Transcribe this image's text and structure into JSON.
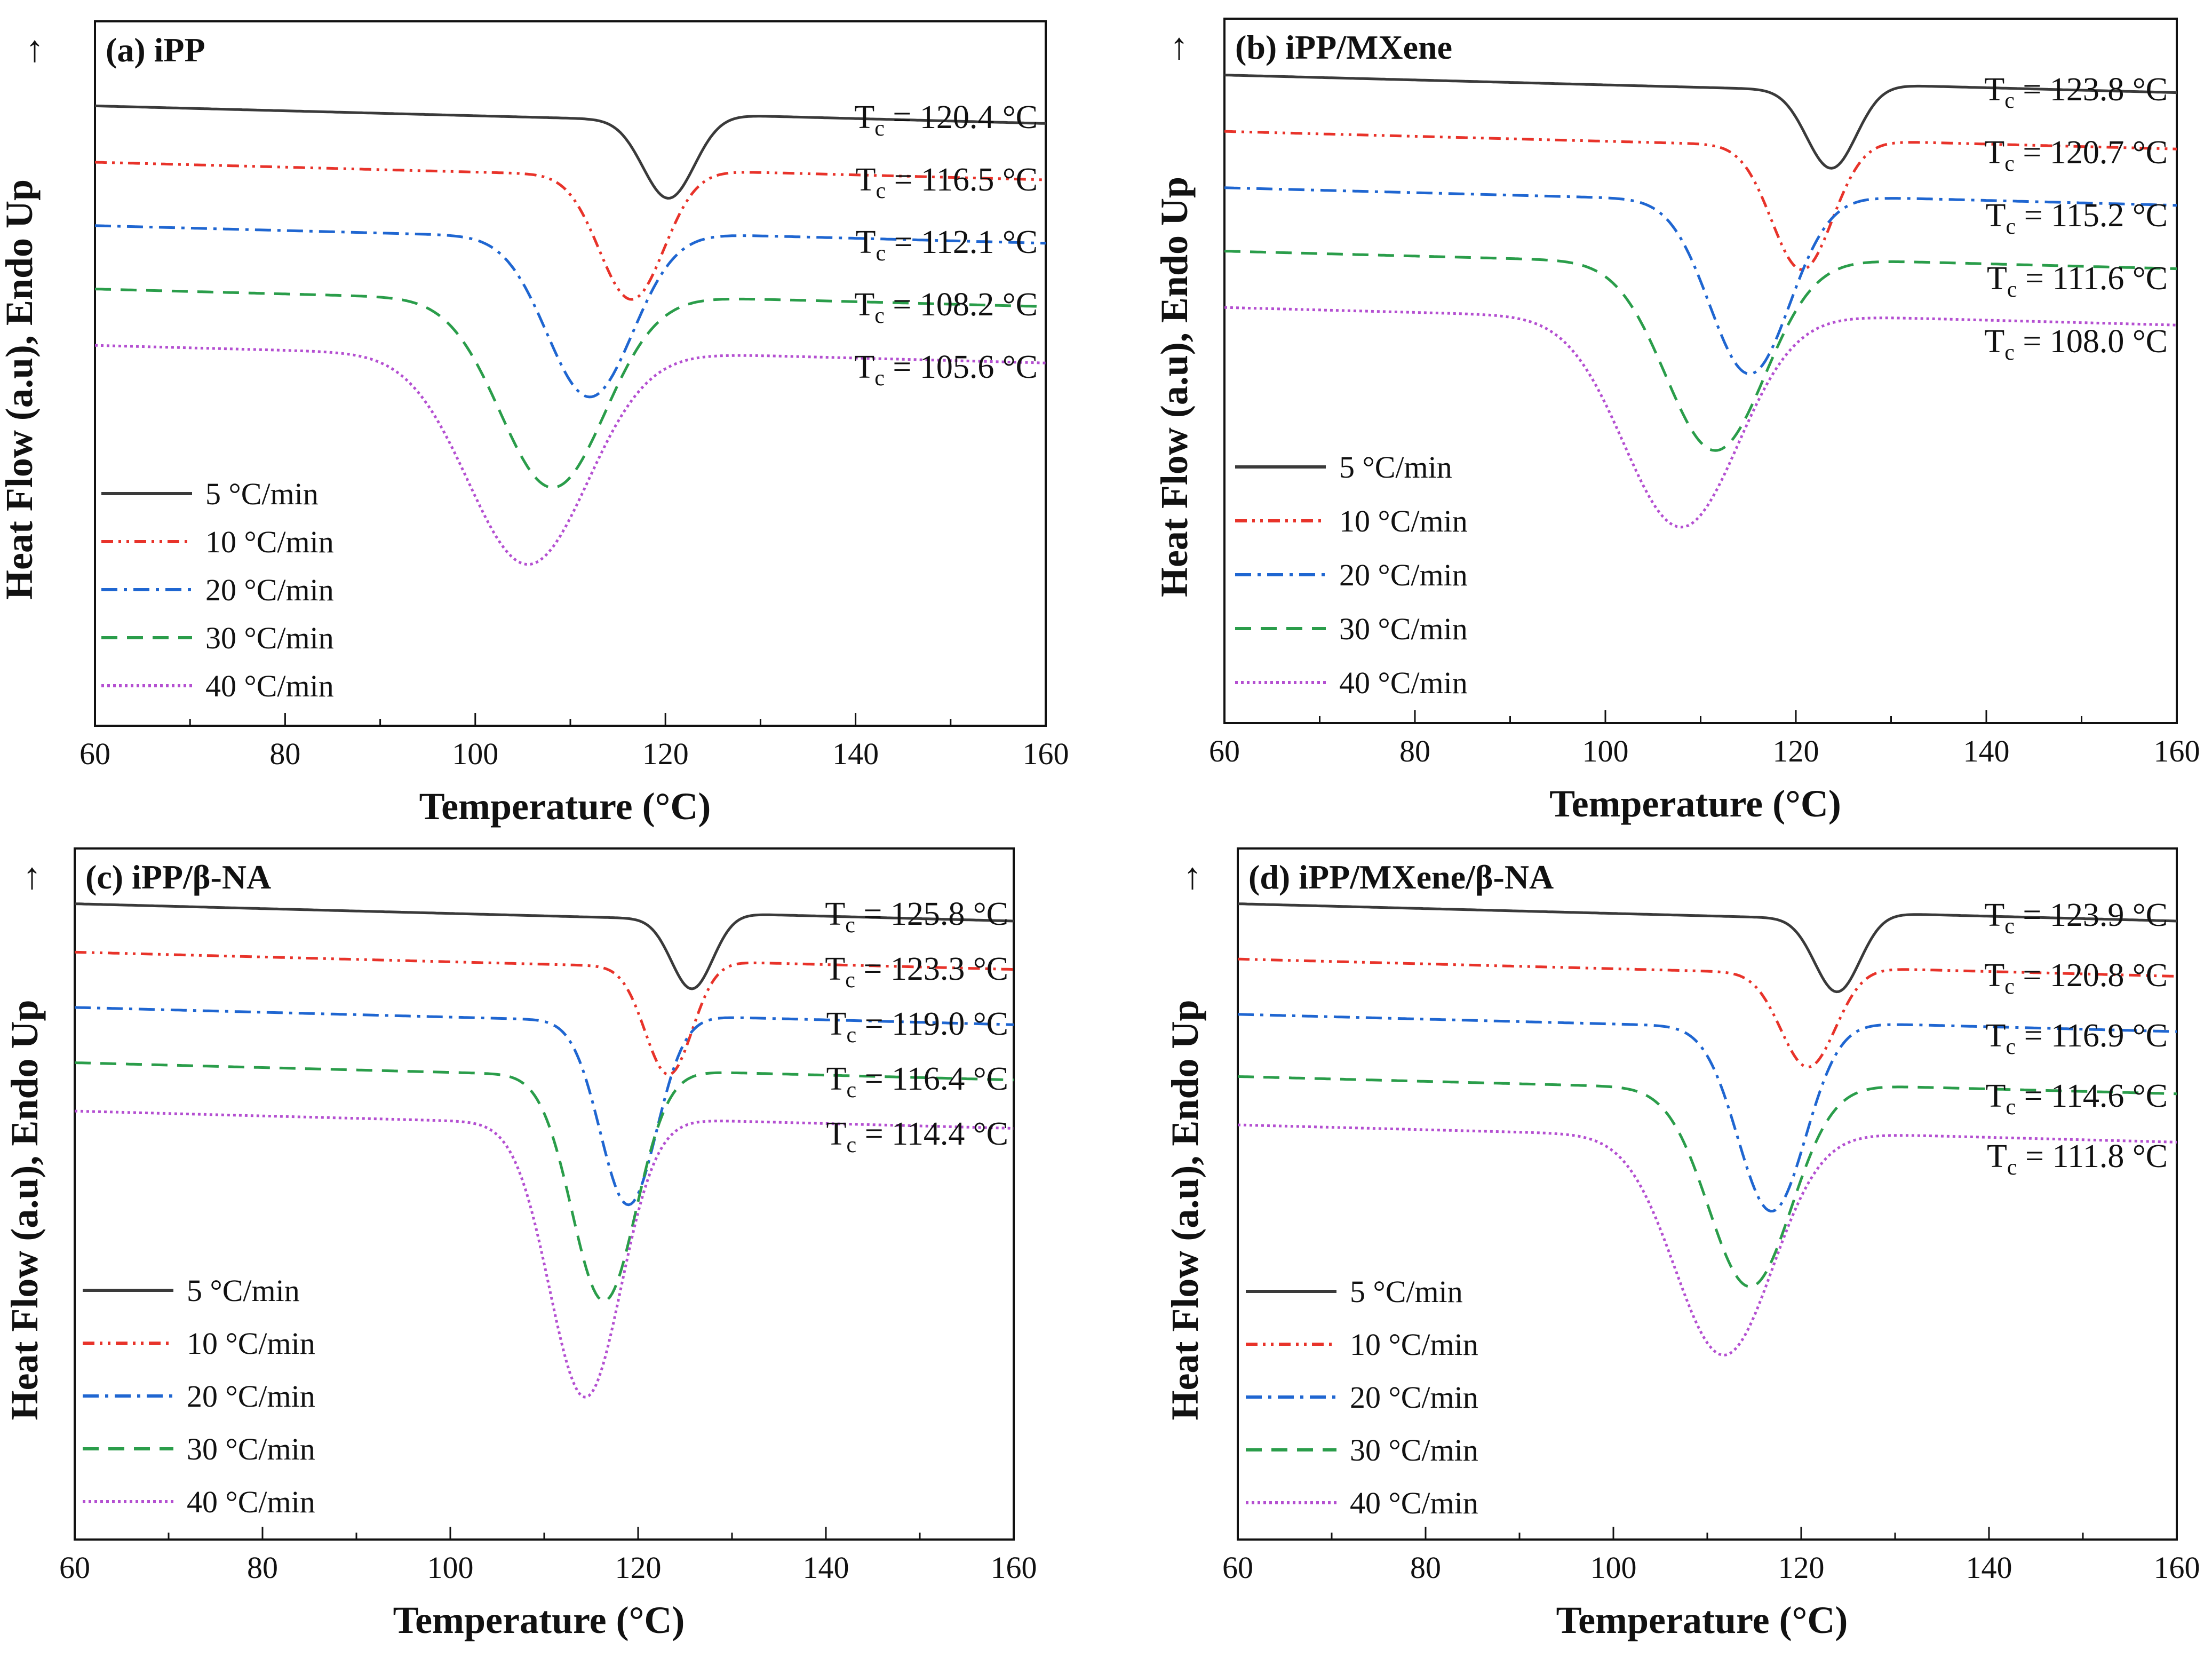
{
  "chart_data": [
    {
      "type": "line",
      "panel_label": "(a) iPP",
      "xlabel": "Temperature (°C)",
      "ylabel": "Heat Flow (a.u), Endo Up",
      "y_arrow": "↑",
      "xlim": [
        60,
        160
      ],
      "xticks": [
        "60",
        "80",
        "100",
        "120",
        "140",
        "160"
      ],
      "legend_placement": "bottom-left",
      "series": [
        {
          "name": "5 °C/min",
          "rate": 5,
          "tc": 120.4,
          "tc_label": "= 120.4 °C",
          "color": "#3a3a3a",
          "dash": "solid",
          "baseline": 0.88,
          "depth": 0.115,
          "width": 2.7
        },
        {
          "name": "10 °C/min",
          "rate": 10,
          "tc": 116.5,
          "tc_label": "= 116.5 °C",
          "color": "#e8332a",
          "dash": "dash-dot-dot",
          "baseline": 0.8,
          "depth": 0.18,
          "width": 3.4
        },
        {
          "name": "20 °C/min",
          "rate": 20,
          "tc": 112.1,
          "tc_label": "= 112.1 °C",
          "color": "#1f66d1",
          "dash": "dash-dot",
          "baseline": 0.71,
          "depth": 0.23,
          "width": 4.5
        },
        {
          "name": "30 °C/min",
          "rate": 30,
          "tc": 108.2,
          "tc_label": "= 108.2 °C",
          "color": "#2a9d4a",
          "dash": "dash",
          "baseline": 0.62,
          "depth": 0.27,
          "width": 5.5
        },
        {
          "name": "40 °C/min",
          "rate": 40,
          "tc": 105.6,
          "tc_label": "= 105.6 °C",
          "color": "#b44fd1",
          "dash": "dot",
          "baseline": 0.54,
          "depth": 0.3,
          "width": 6.3
        }
      ]
    },
    {
      "type": "line",
      "panel_label": "(b) iPP/MXene",
      "xlabel": "Temperature (°C)",
      "ylabel": "Heat Flow (a.u), Endo Up",
      "y_arrow": "↑",
      "xlim": [
        60,
        160
      ],
      "xticks": [
        "60",
        "80",
        "100",
        "120",
        "140",
        "160"
      ],
      "legend_placement": "bottom-left",
      "series": [
        {
          "name": "5 °C/min",
          "rate": 5,
          "tc": 123.8,
          "tc_label": "= 123.8 °C",
          "color": "#3a3a3a",
          "dash": "solid",
          "baseline": 0.92,
          "depth": 0.115,
          "width": 2.6
        },
        {
          "name": "10 °C/min",
          "rate": 10,
          "tc": 120.7,
          "tc_label": "= 120.7 °C",
          "color": "#e8332a",
          "dash": "dash-dot-dot",
          "baseline": 0.84,
          "depth": 0.18,
          "width": 3.2
        },
        {
          "name": "20 °C/min",
          "rate": 20,
          "tc": 115.2,
          "tc_label": "= 115.2 °C",
          "color": "#1f66d1",
          "dash": "dash-dot",
          "baseline": 0.76,
          "depth": 0.25,
          "width": 4.2
        },
        {
          "name": "30 °C/min",
          "rate": 30,
          "tc": 111.6,
          "tc_label": "= 111.6 °C",
          "color": "#2a9d4a",
          "dash": "dash",
          "baseline": 0.67,
          "depth": 0.27,
          "width": 5.2
        },
        {
          "name": "40 °C/min",
          "rate": 40,
          "tc": 108.0,
          "tc_label": "= 108.0 °C",
          "color": "#b44fd1",
          "dash": "dot",
          "baseline": 0.59,
          "depth": 0.3,
          "width": 6.0
        }
      ]
    },
    {
      "type": "line",
      "panel_label": "(c) iPP/β-NA",
      "xlabel": "Temperature (°C)",
      "ylabel": "Heat Flow (a.u), Endo Up",
      "y_arrow": "↑",
      "xlim": [
        60,
        160
      ],
      "xticks": [
        "60",
        "80",
        "100",
        "120",
        "140",
        "160"
      ],
      "legend_placement": "bottom-left",
      "series": [
        {
          "name": "5 °C/min",
          "rate": 5,
          "tc": 125.8,
          "tc_label": "= 125.8 °C",
          "color": "#3a3a3a",
          "dash": "solid",
          "baseline": 0.92,
          "depth": 0.105,
          "width": 2.2
        },
        {
          "name": "10 °C/min",
          "rate": 10,
          "tc": 123.3,
          "tc_label": "= 123.3 °C",
          "color": "#e8332a",
          "dash": "dash-dot-dot",
          "baseline": 0.85,
          "depth": 0.16,
          "width": 2.5
        },
        {
          "name": "20 °C/min",
          "rate": 20,
          "tc": 119.0,
          "tc_label": "= 119.0 °C",
          "color": "#1f66d1",
          "dash": "dash-dot",
          "baseline": 0.77,
          "depth": 0.27,
          "width": 3.0
        },
        {
          "name": "30 °C/min",
          "rate": 30,
          "tc": 116.4,
          "tc_label": "= 116.4 °C",
          "color": "#2a9d4a",
          "dash": "dash",
          "baseline": 0.69,
          "depth": 0.33,
          "width": 3.4
        },
        {
          "name": "40 °C/min",
          "rate": 40,
          "tc": 114.4,
          "tc_label": "= 114.4 °C",
          "color": "#b44fd1",
          "dash": "dot",
          "baseline": 0.62,
          "depth": 0.4,
          "width": 3.8
        }
      ]
    },
    {
      "type": "line",
      "panel_label": "(d) iPP/MXene/β-NA",
      "xlabel": "Temperature (°C)",
      "ylabel": "Heat Flow (a.u), Endo Up",
      "y_arrow": "↑",
      "xlim": [
        60,
        160
      ],
      "xticks": [
        "60",
        "80",
        "100",
        "120",
        "140",
        "160"
      ],
      "legend_placement": "bottom-left",
      "series": [
        {
          "name": "5 °C/min",
          "rate": 5,
          "tc": 123.9,
          "tc_label": "= 123.9 °C",
          "color": "#3a3a3a",
          "dash": "solid",
          "baseline": 0.92,
          "depth": 0.11,
          "width": 2.4
        },
        {
          "name": "10 °C/min",
          "rate": 10,
          "tc": 120.8,
          "tc_label": "= 120.8 °C",
          "color": "#e8332a",
          "dash": "dash-dot-dot",
          "baseline": 0.84,
          "depth": 0.14,
          "width": 2.9
        },
        {
          "name": "20 °C/min",
          "rate": 20,
          "tc": 116.9,
          "tc_label": "= 116.9 °C",
          "color": "#1f66d1",
          "dash": "dash-dot",
          "baseline": 0.76,
          "depth": 0.27,
          "width": 3.6
        },
        {
          "name": "30 °C/min",
          "rate": 30,
          "tc": 114.6,
          "tc_label": "= 114.6 °C",
          "color": "#2a9d4a",
          "dash": "dash",
          "baseline": 0.67,
          "depth": 0.29,
          "width": 4.4
        },
        {
          "name": "40 °C/min",
          "rate": 40,
          "tc": 111.8,
          "tc_label": "= 111.8 °C",
          "color": "#b44fd1",
          "dash": "dot",
          "baseline": 0.6,
          "depth": 0.32,
          "width": 5.2
        }
      ]
    }
  ]
}
